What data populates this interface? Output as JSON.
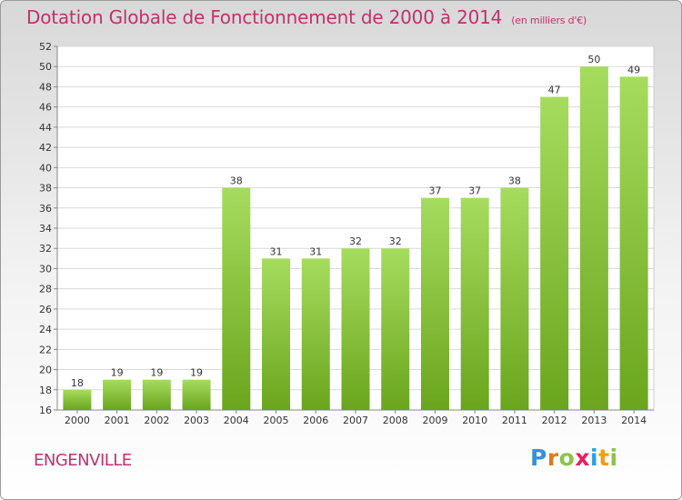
{
  "title": "Dotation Globale de Fonctionnement de 2000 à 2014",
  "unit": "(en milliers d'€)",
  "commune": "ENGENVILLE",
  "logo": "Proxiti",
  "colors": {
    "title": "#c0326e",
    "bar_light": "#a6dc5e",
    "bar_dark": "#6aa51d"
  },
  "chart_data": {
    "type": "bar",
    "title": "Dotation Globale de Fonctionnement de 2000 à 2014",
    "subtitle": "(en milliers d'€)",
    "xlabel": "",
    "ylabel": "",
    "categories": [
      "2000",
      "2001",
      "2002",
      "2003",
      "2004",
      "2005",
      "2006",
      "2007",
      "2008",
      "2009",
      "2010",
      "2011",
      "2012",
      "2013",
      "2014"
    ],
    "values": [
      18,
      19,
      19,
      19,
      38,
      31,
      31,
      32,
      32,
      37,
      37,
      38,
      47,
      50,
      49
    ],
    "ylim": [
      16,
      52
    ],
    "ytick_step": 2,
    "grid": true
  }
}
